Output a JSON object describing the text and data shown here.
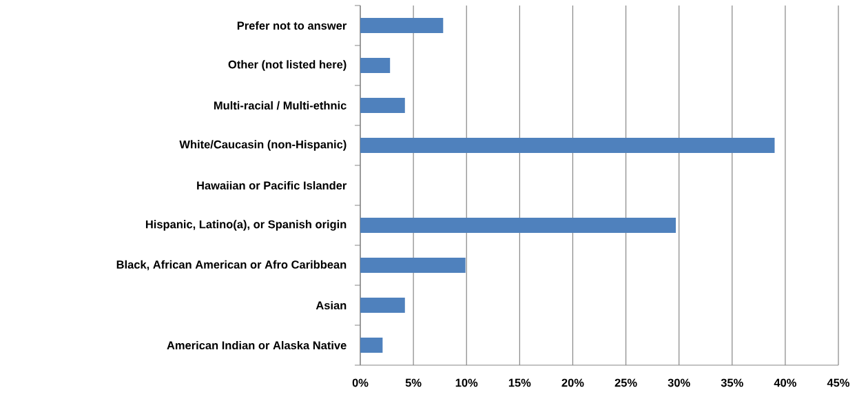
{
  "chart_data": {
    "type": "bar",
    "orientation": "horizontal",
    "categories": [
      "Prefer not to answer",
      "Other (not listed here)",
      "Multi-racial / Multi-ethnic",
      "White/Caucasin (non-Hispanic)",
      "Hawaiian or Pacific Islander",
      "Hispanic, Latino(a), or Spanish origin",
      "Black, African American or Afro Caribbean",
      "Asian",
      "American Indian or Alaska Native"
    ],
    "values": [
      7.8,
      2.8,
      4.2,
      39,
      0,
      29.7,
      9.9,
      4.2,
      2.1
    ],
    "color": "#4f81bd",
    "xlim": [
      0,
      45
    ],
    "xticks": [
      {
        "value": 0,
        "label": "0%"
      },
      {
        "value": 5,
        "label": "5%"
      },
      {
        "value": 10,
        "label": "10%"
      },
      {
        "value": 15,
        "label": "15%"
      },
      {
        "value": 20,
        "label": "20%"
      },
      {
        "value": 25,
        "label": "25%"
      },
      {
        "value": 30,
        "label": "30%"
      },
      {
        "value": 35,
        "label": "35%"
      },
      {
        "value": 40,
        "label": "40%"
      },
      {
        "value": 45,
        "label": "45%"
      }
    ],
    "grid": "x"
  }
}
